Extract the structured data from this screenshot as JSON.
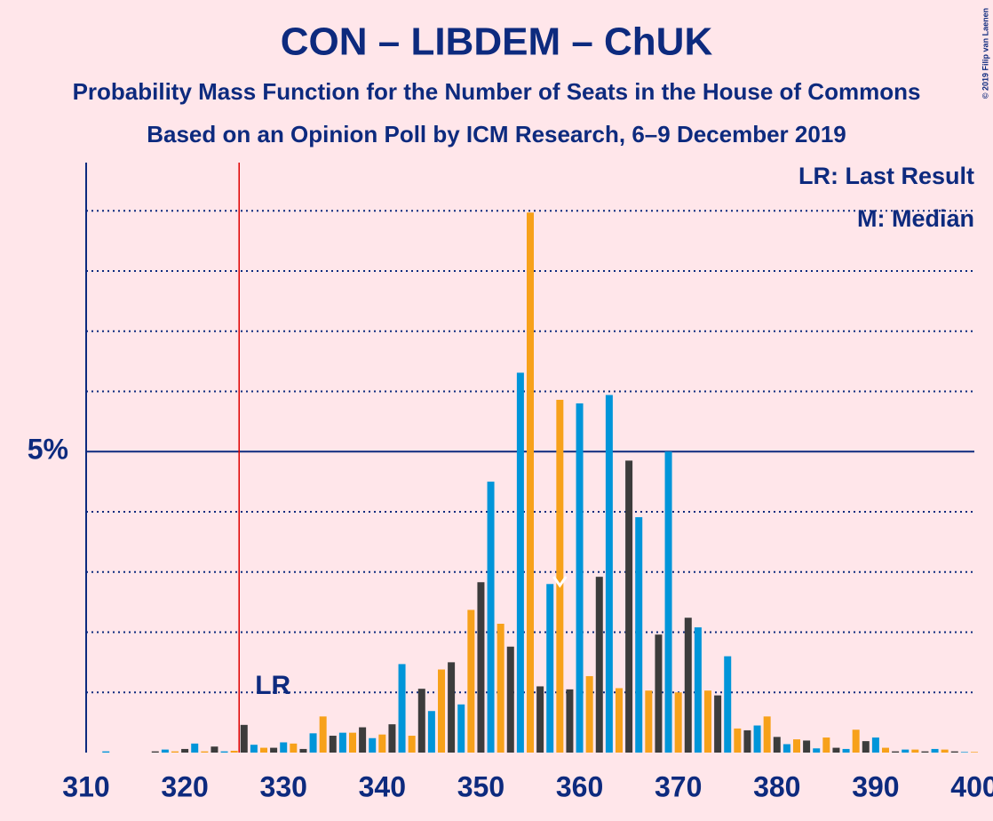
{
  "chart_data": {
    "type": "bar",
    "title": "CON – LIBDEM – ChUK",
    "subtitle": "Probability Mass Function for the Number of Seats in the House of Commons",
    "subtitle2": "Based on an Opinion Poll by ICM Research, 6–9 December 2019",
    "copyright": "© 2019 Filip van Laenen",
    "legend": [
      "LR: Last Result",
      "M: Median"
    ],
    "last_result": 326,
    "last_result_label": "LR",
    "median": 358,
    "bar_colors": [
      "#f7a11a",
      "#3c3c3c",
      "#0095d9"
    ],
    "x": [
      310,
      311,
      312,
      313,
      314,
      315,
      316,
      317,
      318,
      319,
      320,
      321,
      322,
      323,
      324,
      325,
      326,
      327,
      328,
      329,
      330,
      331,
      332,
      333,
      334,
      335,
      336,
      337,
      338,
      339,
      340,
      341,
      342,
      343,
      344,
      345,
      346,
      347,
      348,
      349,
      350,
      351,
      352,
      353,
      354,
      355,
      356,
      357,
      358,
      359,
      360,
      361,
      362,
      363,
      364,
      365,
      366,
      367,
      368,
      369,
      370,
      371,
      372,
      373,
      374,
      375,
      376,
      377,
      378,
      379,
      380,
      381,
      382,
      383,
      384,
      385,
      386,
      387,
      388,
      389,
      390,
      391,
      392,
      393,
      394,
      395,
      396,
      397,
      398,
      399,
      400
    ],
    "values": [
      0,
      0,
      0.02,
      0,
      0,
      0,
      0,
      0.02,
      0.05,
      0.02,
      0.06,
      0.15,
      0.02,
      0.1,
      0.02,
      0.03,
      0.46,
      0.13,
      0.08,
      0.08,
      0.17,
      0.15,
      0.06,
      0.32,
      0.6,
      0.28,
      0.33,
      0.33,
      0.42,
      0.24,
      0.3,
      0.47,
      1.47,
      0.28,
      1.06,
      0.69,
      1.38,
      1.5,
      0.8,
      2.37,
      2.83,
      4.5,
      2.14,
      1.76,
      6.31,
      8.97,
      1.1,
      2.8,
      5.86,
      1.05,
      5.8,
      1.27,
      2.92,
      5.94,
      1.07,
      4.85,
      3.91,
      1.03,
      1.96,
      5.0,
      1.0,
      2.24,
      2.08,
      1.03,
      0.95,
      1.6,
      0.4,
      0.37,
      0.45,
      0.6,
      0.26,
      0.14,
      0.22,
      0.2,
      0.07,
      0.25,
      0.08,
      0.06,
      0.38,
      0.19,
      0.25,
      0.08,
      0.02,
      0.05,
      0.05,
      0.02,
      0.06,
      0.05,
      0.02,
      0.01,
      0.01
    ],
    "xlim": [
      310,
      400
    ],
    "xticks": [
      310,
      320,
      330,
      340,
      350,
      360,
      370,
      380,
      390,
      400
    ],
    "ylim": [
      0,
      9.8
    ],
    "yticks": [
      {
        "value": 5,
        "label": "5%"
      }
    ],
    "minor_yticks": [
      1,
      2,
      3,
      4,
      6,
      7,
      8,
      9
    ]
  }
}
